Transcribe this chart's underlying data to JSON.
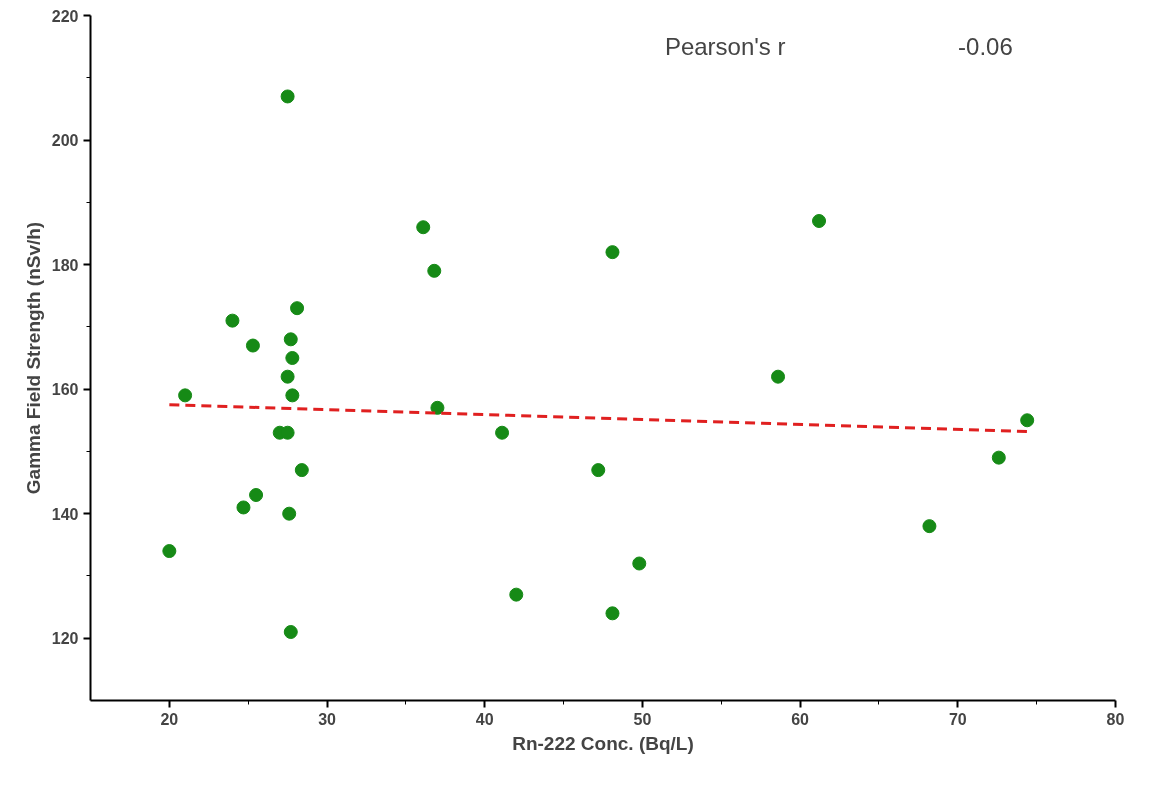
{
  "chart_data": {
    "type": "scatter",
    "xlabel": "Rn-222 Conc. (Bq/L)",
    "ylabel": "Gamma Field Strength (nSv/h)",
    "xlim": [
      15,
      80
    ],
    "ylim": [
      110,
      220
    ],
    "xticks": [
      20,
      30,
      40,
      50,
      60,
      70,
      80
    ],
    "yticks": [
      120,
      140,
      160,
      180,
      200,
      220
    ],
    "grid": false,
    "marker": "circle",
    "annotations": [
      "Pearson's r",
      "-0.06"
    ],
    "series": [
      {
        "color": "#168a16",
        "x": [
          20,
          21,
          24,
          24.7,
          25.3,
          25.5,
          27,
          27.5,
          27.5,
          27.5,
          27.6,
          27.7,
          27.8,
          27.8,
          27.7,
          28.1,
          28.4,
          36.1,
          36.8,
          37,
          41.1,
          42,
          47.2,
          48.1,
          48.1,
          49.8,
          58.6,
          61.2,
          68.2,
          72.6,
          74.4
        ],
        "values": [
          134,
          159,
          171,
          141,
          167,
          143,
          153,
          207,
          162,
          153,
          140,
          168,
          165,
          159,
          121,
          173,
          147,
          186,
          179,
          157,
          153,
          127,
          147,
          182,
          124,
          132,
          162,
          187,
          138,
          149,
          155
        ]
      },
      {
        "type": "line",
        "color": "#e02020",
        "line_style": "dashed",
        "marker": "none",
        "x": [
          20,
          74.4
        ],
        "values": [
          157.5,
          153.2
        ]
      }
    ]
  }
}
